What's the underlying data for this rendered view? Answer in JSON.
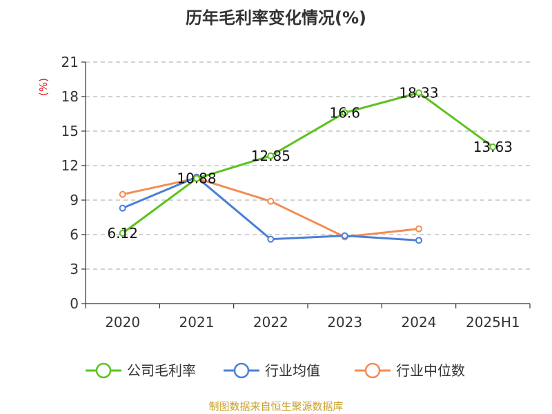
{
  "chart_data": {
    "type": "line",
    "title": "历年毛利率变化情况(%)",
    "unit_label": "(%)",
    "categories": [
      "2020",
      "2021",
      "2022",
      "2023",
      "2024",
      "2025H1"
    ],
    "ylim": [
      0,
      21
    ],
    "yticks": [
      0,
      3,
      6,
      9,
      12,
      15,
      18,
      21
    ],
    "grid": true,
    "legend_position": "bottom",
    "series": [
      {
        "name": "公司毛利率",
        "color": "#5bc21e",
        "values": [
          6.12,
          10.88,
          12.85,
          16.6,
          18.33,
          13.63
        ],
        "labels": [
          "6.12",
          "10.88",
          "12.85",
          "16.6",
          "18.33",
          "13.63"
        ]
      },
      {
        "name": "行业均值",
        "color": "#4a7fd8",
        "values": [
          8.3,
          11.0,
          5.6,
          5.9,
          5.5,
          null
        ]
      },
      {
        "name": "行业中位数",
        "color": "#f28c55",
        "values": [
          9.5,
          10.9,
          8.9,
          5.8,
          6.5,
          null
        ]
      }
    ],
    "source": "制图数据来自恒生聚源数据库"
  }
}
